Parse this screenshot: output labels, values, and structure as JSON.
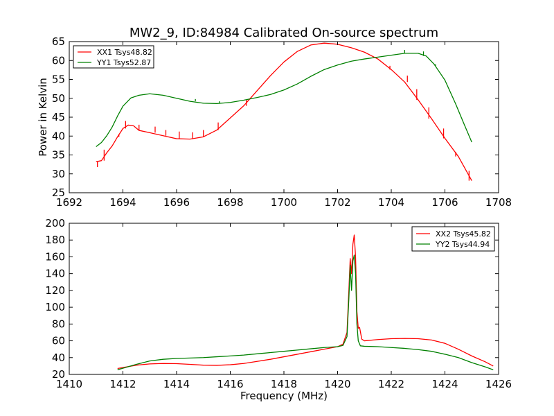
{
  "chart_data": [
    {
      "type": "line",
      "title": "MW2_9, ID:84984 Calibrated On-source spectrum",
      "xlabel": "",
      "ylabel": "Power in Kelvin",
      "xlim": [
        1692,
        1708
      ],
      "ylim": [
        25,
        65
      ],
      "x_ticks": [
        "1692",
        "1694",
        "1696",
        "1698",
        "1700",
        "1702",
        "1704",
        "1706",
        "1708"
      ],
      "y_ticks": [
        "25",
        "30",
        "35",
        "40",
        "45",
        "50",
        "55",
        "60",
        "65"
      ],
      "grid": false,
      "legend_position": "top-left",
      "series": [
        {
          "name": "XX1 Tsys48.82",
          "color": "#ff0000",
          "points": [
            [
              1693.0,
              33.2
            ],
            [
              1693.2,
              33.5
            ],
            [
              1693.4,
              35.6
            ],
            [
              1693.6,
              37.4
            ],
            [
              1693.8,
              39.8
            ],
            [
              1694.0,
              42.0
            ],
            [
              1694.2,
              42.9
            ],
            [
              1694.4,
              42.7
            ],
            [
              1694.6,
              41.5
            ],
            [
              1695.0,
              40.9
            ],
            [
              1695.5,
              40.1
            ],
            [
              1696.0,
              39.3
            ],
            [
              1696.5,
              39.2
            ],
            [
              1697.0,
              39.8
            ],
            [
              1697.5,
              41.6
            ],
            [
              1698.0,
              44.8
            ],
            [
              1698.5,
              48.0
            ],
            [
              1699.0,
              52.0
            ],
            [
              1699.5,
              56.0
            ],
            [
              1700.0,
              59.6
            ],
            [
              1700.5,
              62.4
            ],
            [
              1701.0,
              64.1
            ],
            [
              1701.5,
              64.6
            ],
            [
              1702.0,
              64.3
            ],
            [
              1702.5,
              63.4
            ],
            [
              1703.0,
              62.2
            ],
            [
              1703.5,
              60.4
            ],
            [
              1704.0,
              57.6
            ],
            [
              1704.5,
              54.3
            ],
            [
              1705.0,
              49.6
            ],
            [
              1705.5,
              44.6
            ],
            [
              1706.0,
              39.4
            ],
            [
              1706.5,
              34.6
            ],
            [
              1707.0,
              28.2
            ]
          ],
          "spikes": [
            [
              1693.05,
              31.8
            ],
            [
              1693.3,
              36.4
            ],
            [
              1693.85,
              40.5
            ],
            [
              1694.1,
              44.0
            ],
            [
              1694.6,
              43.0
            ],
            [
              1695.2,
              42.5
            ],
            [
              1695.6,
              41.6
            ],
            [
              1696.1,
              41.2
            ],
            [
              1696.6,
              41.0
            ],
            [
              1697.0,
              41.6
            ],
            [
              1697.55,
              43.6
            ],
            [
              1698.6,
              49.6
            ],
            [
              1703.95,
              58.6
            ],
            [
              1704.6,
              56.0
            ],
            [
              1704.95,
              52.4
            ],
            [
              1705.4,
              47.6
            ],
            [
              1705.95,
              42.0
            ],
            [
              1706.4,
              35.8
            ],
            [
              1706.9,
              30.8
            ]
          ]
        },
        {
          "name": "YY1 Tsys52.87",
          "color": "#008000",
          "points": [
            [
              1693.0,
              37.2
            ],
            [
              1693.2,
              38.3
            ],
            [
              1693.4,
              40.1
            ],
            [
              1693.6,
              42.4
            ],
            [
              1693.8,
              45.3
            ],
            [
              1694.0,
              47.9
            ],
            [
              1694.3,
              50.1
            ],
            [
              1694.6,
              50.8
            ],
            [
              1695.0,
              51.2
            ],
            [
              1695.5,
              50.8
            ],
            [
              1696.0,
              50.0
            ],
            [
              1696.5,
              49.2
            ],
            [
              1697.0,
              48.7
            ],
            [
              1697.5,
              48.6
            ],
            [
              1698.0,
              48.9
            ],
            [
              1698.5,
              49.5
            ],
            [
              1699.0,
              50.2
            ],
            [
              1699.5,
              51.0
            ],
            [
              1700.0,
              52.2
            ],
            [
              1700.5,
              53.8
            ],
            [
              1701.0,
              55.8
            ],
            [
              1701.5,
              57.6
            ],
            [
              1702.0,
              58.8
            ],
            [
              1702.5,
              59.8
            ],
            [
              1703.0,
              60.4
            ],
            [
              1703.5,
              60.9
            ],
            [
              1704.0,
              61.4
            ],
            [
              1704.5,
              61.9
            ],
            [
              1705.0,
              61.9
            ],
            [
              1705.3,
              61.2
            ],
            [
              1705.6,
              59.0
            ],
            [
              1706.0,
              54.8
            ],
            [
              1706.4,
              48.5
            ],
            [
              1706.7,
              43.4
            ],
            [
              1707.0,
              38.4
            ]
          ],
          "spikes": [
            [
              1696.7,
              49.8
            ],
            [
              1697.6,
              49.2
            ],
            [
              1704.5,
              62.8
            ],
            [
              1705.2,
              62.4
            ],
            [
              1705.65,
              58.6
            ]
          ]
        }
      ]
    },
    {
      "type": "line",
      "title": "",
      "xlabel": "Frequency (MHz)",
      "ylabel": "",
      "xlim": [
        1410,
        1426
      ],
      "ylim": [
        20,
        200
      ],
      "x_ticks": [
        "1410",
        "1412",
        "1414",
        "1416",
        "1418",
        "1420",
        "1422",
        "1424",
        "1426"
      ],
      "y_ticks": [
        "20",
        "40",
        "60",
        "80",
        "100",
        "120",
        "140",
        "160",
        "180",
        "200"
      ],
      "grid": false,
      "legend_position": "top-right",
      "series": [
        {
          "name": "XX2 Tsys45.82",
          "color": "#ff0000",
          "points": [
            [
              1411.8,
              27.0
            ],
            [
              1412.5,
              31.0
            ],
            [
              1413.0,
              32.5
            ],
            [
              1413.5,
              33.0
            ],
            [
              1414.0,
              32.8
            ],
            [
              1414.5,
              32.0
            ],
            [
              1415.0,
              31.0
            ],
            [
              1415.5,
              30.8
            ],
            [
              1416.0,
              31.5
            ],
            [
              1416.5,
              33.0
            ],
            [
              1417.0,
              35.5
            ],
            [
              1417.5,
              38.0
            ],
            [
              1418.0,
              41.0
            ],
            [
              1418.5,
              44.0
            ],
            [
              1419.0,
              47.0
            ],
            [
              1419.5,
              50.0
            ],
            [
              1420.0,
              53.0
            ],
            [
              1420.2,
              56.0
            ],
            [
              1420.35,
              70.0
            ],
            [
              1420.42,
              120.0
            ],
            [
              1420.47,
              158.0
            ],
            [
              1420.52,
              140.0
            ],
            [
              1420.57,
              175.0
            ],
            [
              1420.62,
              186.0
            ],
            [
              1420.67,
              160.0
            ],
            [
              1420.72,
              95.0
            ],
            [
              1420.77,
              75.0
            ],
            [
              1420.82,
              76.0
            ],
            [
              1420.9,
              62.0
            ],
            [
              1421.0,
              60.0
            ],
            [
              1421.5,
              61.5
            ],
            [
              1422.0,
              62.5
            ],
            [
              1422.5,
              62.8
            ],
            [
              1423.0,
              62.5
            ],
            [
              1423.5,
              61.0
            ],
            [
              1424.0,
              57.0
            ],
            [
              1424.5,
              50.0
            ],
            [
              1425.0,
              42.0
            ],
            [
              1425.5,
              35.0
            ],
            [
              1425.8,
              30.0
            ]
          ]
        },
        {
          "name": "YY2 Tsys44.94",
          "color": "#008000",
          "points": [
            [
              1411.8,
              25.5
            ],
            [
              1412.5,
              32.0
            ],
            [
              1413.0,
              36.0
            ],
            [
              1413.5,
              38.0
            ],
            [
              1414.0,
              39.0
            ],
            [
              1414.5,
              39.5
            ],
            [
              1415.0,
              40.0
            ],
            [
              1415.5,
              41.0
            ],
            [
              1416.0,
              42.0
            ],
            [
              1416.5,
              43.0
            ],
            [
              1417.0,
              44.5
            ],
            [
              1417.5,
              46.0
            ],
            [
              1418.0,
              47.5
            ],
            [
              1418.5,
              49.0
            ],
            [
              1419.0,
              50.5
            ],
            [
              1419.5,
              52.0
            ],
            [
              1420.0,
              53.0
            ],
            [
              1420.2,
              54.5
            ],
            [
              1420.35,
              65.0
            ],
            [
              1420.42,
              110.0
            ],
            [
              1420.47,
              150.0
            ],
            [
              1420.52,
              120.0
            ],
            [
              1420.57,
              155.0
            ],
            [
              1420.62,
              162.0
            ],
            [
              1420.67,
              140.0
            ],
            [
              1420.72,
              80.0
            ],
            [
              1420.77,
              60.0
            ],
            [
              1420.85,
              54.0
            ],
            [
              1421.0,
              53.5
            ],
            [
              1421.5,
              53.0
            ],
            [
              1422.0,
              52.0
            ],
            [
              1422.5,
              51.0
            ],
            [
              1423.0,
              49.5
            ],
            [
              1423.5,
              47.5
            ],
            [
              1424.0,
              44.0
            ],
            [
              1424.5,
              40.0
            ],
            [
              1425.0,
              34.0
            ],
            [
              1425.5,
              29.0
            ],
            [
              1425.8,
              25.5
            ]
          ]
        }
      ]
    }
  ]
}
